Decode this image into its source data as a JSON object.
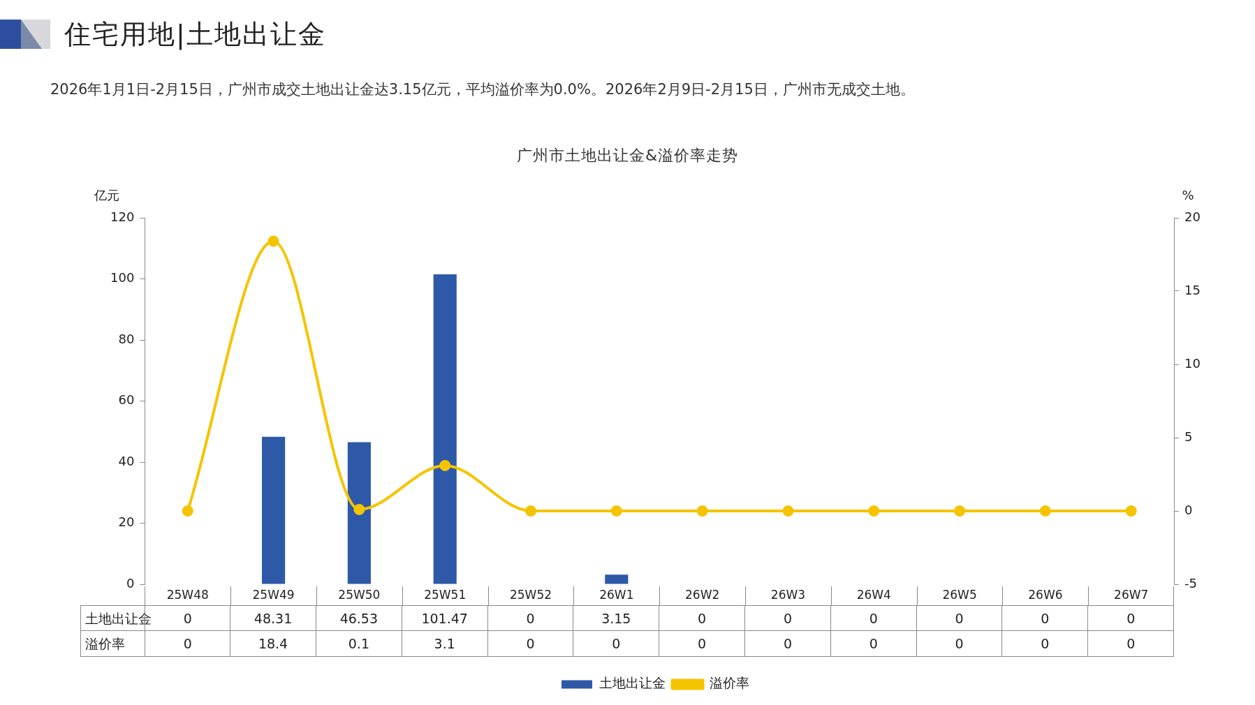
{
  "chart_data": {
    "type": "bar",
    "title": "住宅用地|土地出让金",
    "subtitle": "2026年1月1日-2月15日，广州市成交土地出让金达3.15亿元，平均溢价率为0.0%。2026年2月9日-2月15日，广州市无成交土地。",
    "annotations": [
      "广州市土地出让金&溢价率走势"
    ],
    "ylabel": "亿元",
    "y2label": "%",
    "categories": [
      "25W48",
      "25W49",
      "25W50",
      "25W51",
      "25W52",
      "26W1",
      "26W2",
      "26W3",
      "26W4",
      "26W5",
      "26W6",
      "26W7"
    ],
    "series": [
      {
        "name": "土地出让金",
        "color": "#2e59a8",
        "values": [
          0,
          48.31,
          46.53,
          101.47,
          0,
          3.15,
          0,
          0,
          0,
          0,
          0,
          0
        ]
      },
      {
        "name": "溢价率",
        "type": "line",
        "axis": "y2",
        "color": "#f5c400",
        "values": [
          0,
          18.4,
          0.1,
          3.1,
          0,
          0,
          0,
          0,
          0,
          0,
          0,
          0
        ]
      }
    ],
    "ylim": [
      0,
      120
    ],
    "yticks": [
      0,
      20,
      40,
      60,
      80,
      100,
      120
    ],
    "y2lim": [
      -5,
      20
    ],
    "y2ticks": [
      -5,
      0,
      5,
      10,
      15,
      20
    ],
    "marker": "circle",
    "legend": "bottom",
    "data_labels": true
  }
}
